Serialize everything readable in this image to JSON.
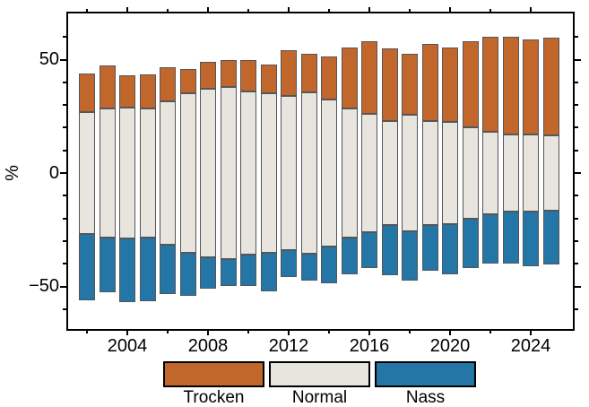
{
  "chart_data": {
    "type": "bar",
    "stacked": true,
    "orientation": "vertical",
    "description": "Diverging 100% stacked bars: Normal centered on zero, Trocken above, Nass below",
    "title": "",
    "xlabel": "",
    "ylabel": "%",
    "categories": [
      2002,
      2003,
      2004,
      2005,
      2006,
      2007,
      2008,
      2009,
      2010,
      2011,
      2012,
      2013,
      2014,
      2015,
      2016,
      2017,
      2018,
      2019,
      2020,
      2021,
      2022,
      2023,
      2024,
      2025
    ],
    "series": [
      {
        "name": "Trocken",
        "color": "#C2672C",
        "values": [
          17,
          19,
          14,
          15,
          15,
          11,
          12,
          12,
          14,
          13,
          20,
          17,
          19,
          27,
          32,
          32,
          27,
          34,
          33,
          38,
          42,
          43,
          42,
          43
        ]
      },
      {
        "name": "Normal",
        "color": "#E8E4DE",
        "values": [
          54,
          57,
          58,
          57,
          63,
          70,
          74,
          76,
          72,
          70,
          68,
          71,
          65,
          57,
          52,
          46,
          51,
          46,
          45,
          40,
          36,
          34,
          34,
          33
        ]
      },
      {
        "name": "Nass",
        "color": "#2376A6",
        "values": [
          29,
          24,
          28,
          28,
          22,
          19,
          14,
          12,
          14,
          17,
          12,
          12,
          16,
          16,
          16,
          22,
          22,
          20,
          22,
          22,
          22,
          23,
          24,
          24
        ]
      }
    ],
    "y_axis": {
      "tick_labels": [
        "50",
        "0",
        "−50"
      ],
      "tick_values": [
        50,
        0,
        -50
      ],
      "minor_tick_step": 10,
      "range": [
        -69,
        71
      ],
      "grid": false
    },
    "x_axis": {
      "tick_labels": [
        "2004",
        "2008",
        "2012",
        "2016",
        "2020",
        "2024"
      ],
      "tick_values": [
        2004,
        2008,
        2012,
        2016,
        2020,
        2024
      ],
      "minor_tick_step": 2,
      "range": [
        2001,
        2026
      ],
      "grid": false
    },
    "legend": {
      "position": "bottom",
      "entries": [
        {
          "label": "Trocken",
          "color": "#C2672C"
        },
        {
          "label": "Normal",
          "color": "#E8E4DE"
        },
        {
          "label": "Nass",
          "color": "#2376A6"
        }
      ]
    }
  }
}
